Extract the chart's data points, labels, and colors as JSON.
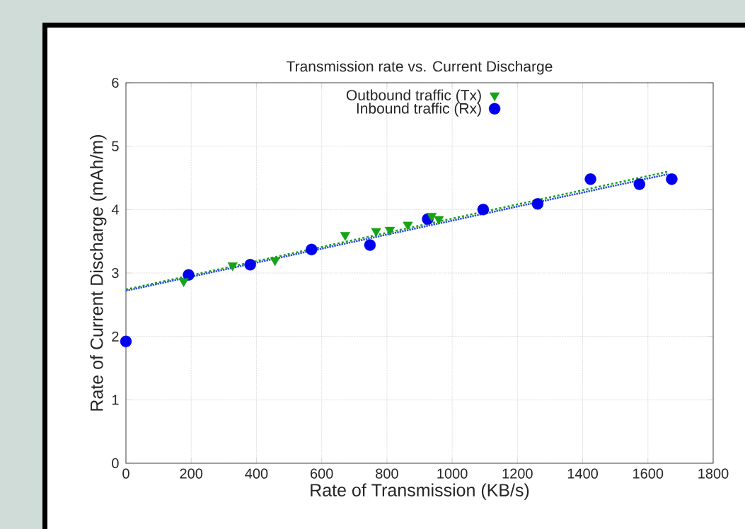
{
  "chart_data": {
    "type": "scatter",
    "title": "Transmission rate vs. Current Discharge",
    "xlabel": "Rate of Transmission (KB/s)",
    "ylabel": "Rate of Current Discharge (mAh/m)",
    "xlim": [
      0,
      1800
    ],
    "xticks": [
      0,
      200,
      400,
      600,
      800,
      1000,
      1200,
      1400,
      1600,
      1800
    ],
    "ylim": [
      0,
      6
    ],
    "yticks": [
      0,
      1,
      2,
      3,
      4,
      5,
      6
    ],
    "grid": true,
    "legend": "top",
    "series": [
      {
        "name": "Outbound traffic (Tx)",
        "type": "scatter",
        "marker": "triangle",
        "color": "#17a317",
        "x": [
          177,
          327,
          457,
          672,
          767,
          809,
          864,
          937,
          959
        ],
        "values": [
          2.87,
          3.12,
          3.2,
          3.6,
          3.66,
          3.68,
          3.76,
          3.9,
          3.85
        ]
      },
      {
        "name": "Inbound traffic (Rx)",
        "type": "scatter",
        "marker": "circle",
        "color": "#0000ee",
        "x": [
          0,
          192,
          381,
          569,
          748,
          925,
          1095,
          1262,
          1424,
          1574,
          1673
        ],
        "values": [
          1.92,
          2.97,
          3.13,
          3.37,
          3.44,
          3.85,
          4.0,
          4.09,
          4.48,
          4.4,
          4.48
        ]
      },
      {
        "type": "line",
        "line_style": "dashed",
        "color": "#17a317",
        "x": [
          0,
          1663
        ],
        "values": [
          2.74,
          4.6
        ]
      },
      {
        "type": "line",
        "line_style": "dotted",
        "color": "#3050ee",
        "x": [
          0,
          1663
        ],
        "values": [
          2.72,
          4.56
        ]
      }
    ]
  }
}
